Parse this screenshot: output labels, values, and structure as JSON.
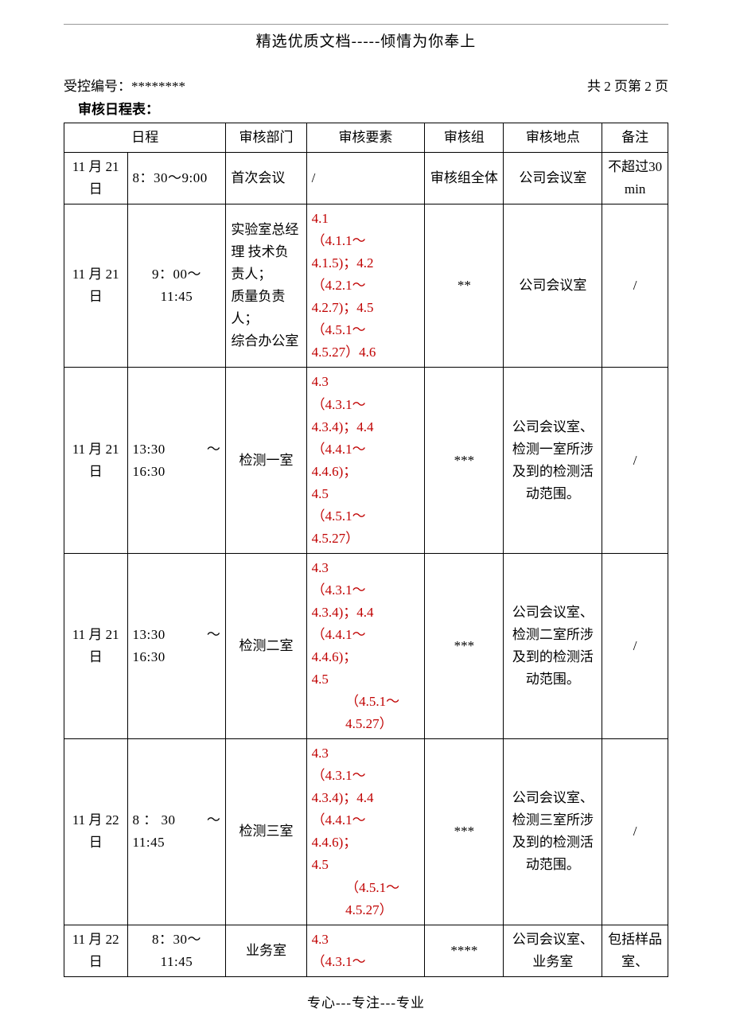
{
  "header": {
    "title": "精选优质文档-----倾情为你奉上",
    "control_label": "受控编号：",
    "control_value": "********",
    "page_info": "共 2 页第 2 页",
    "sub_title": "审核日程表："
  },
  "columns": {
    "schedule": "日程",
    "dept": "审核部门",
    "element": "审核要素",
    "group": "审核组",
    "location": "审核地点",
    "note": "备注"
  },
  "rows": [
    {
      "date": "11 月 21日",
      "time": "8：30～9:00",
      "dept": "首次会议",
      "element": "/",
      "element_red": false,
      "group": "审核组全体",
      "location": "公司会议室",
      "note": "不超过30min"
    },
    {
      "date": "11 月 21日",
      "time": "9：00～\n11:45",
      "time_align": "center",
      "dept": "实验室总经理 技术负责人；\n质量负责人；\n综合办公室",
      "element": "4.1\n（4.1.1～\n4.1.5)；4.2\n（4.2.1～\n4.2.7)；4.5\n（4.5.1～\n4.5.27）4.6",
      "element_red": true,
      "group": "**",
      "location": "公司会议室",
      "note": "/"
    },
    {
      "date": "11 月 21日",
      "time_split": [
        "13:30",
        "～"
      ],
      "time2": "16:30",
      "dept": "检测一室",
      "dept_align": "center",
      "element": "4.3\n（4.3.1～\n4.3.4)；4.4\n（4.4.1～\n4.4.6)；\n4.5\n（4.5.1～\n4.5.27）",
      "element_red": true,
      "group": "***",
      "location": "公司会议室、检测一室所涉及到的检测活动范围。",
      "note": "/"
    },
    {
      "date": "11 月 21日",
      "time_split": [
        "13:30",
        "～"
      ],
      "time2": "16:30",
      "dept": "检测二室",
      "dept_align": "center",
      "element_html": "4.3\n（4.3.1～\n4.3.4)；4.4\n（4.4.1～\n4.4.6)；\n4.5",
      "element_tail_indent": "（4.5.1～\n4.5.27）",
      "element_red": true,
      "group": "***",
      "location": "公司会议室、检测二室所涉及到的检测活动范围。",
      "note": "/"
    },
    {
      "date": "11 月 22日",
      "time_split": [
        "8 ： 30",
        "～"
      ],
      "time2": "11:45",
      "dept": "检测三室",
      "dept_align": "center",
      "element_html": "4.3\n（4.3.1～\n4.3.4)；4.4\n（4.4.1～\n4.4.6)；\n4.5",
      "element_tail_indent": "（4.5.1～\n4.5.27）",
      "element_red": true,
      "group": "***",
      "location": "公司会议室、检测三室所涉及到的检测活动范围。",
      "note": "/"
    },
    {
      "date": "11 月 22日",
      "time": "8：30～\n11:45",
      "time_align": "center",
      "dept": "业务室",
      "dept_align": "center",
      "element": "4.3\n（4.3.1～",
      "element_red": true,
      "group": "****",
      "location": "公司会议室、业务室",
      "note": "包括样品室、"
    }
  ],
  "footer": "专心---专注---专业",
  "colors": {
    "text": "#000000",
    "red": "#c00000",
    "rule": "#999999",
    "background": "#ffffff"
  }
}
